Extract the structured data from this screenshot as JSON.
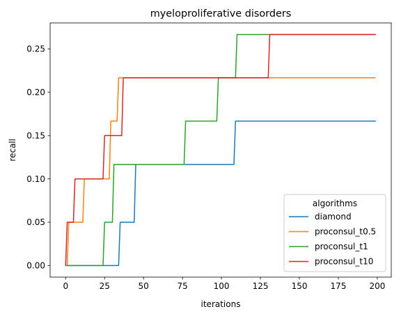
{
  "chart_data": {
    "type": "line",
    "title": "myeloproliferative disorders",
    "xlabel": "iterations",
    "ylabel": "recall",
    "xlim": [
      -9.95,
      208.95
    ],
    "ylim": [
      -0.01333,
      0.28
    ],
    "xticks": [
      0,
      25,
      50,
      75,
      100,
      125,
      150,
      175,
      200
    ],
    "xtick_labels": [
      "0",
      "25",
      "50",
      "75",
      "100",
      "125",
      "150",
      "175",
      "200"
    ],
    "yticks": [
      0.0,
      0.05,
      0.1,
      0.15,
      0.2,
      0.25
    ],
    "ytick_labels": [
      "0.00",
      "0.05",
      "0.10",
      "0.15",
      "0.20",
      "0.25"
    ],
    "grid": false,
    "legend": {
      "title": "algorithms",
      "placement": "lower-right"
    },
    "series": [
      {
        "name": "diamond",
        "color": "#1f77b4",
        "x": [
          0,
          34,
          35,
          40,
          44,
          45,
          108,
          109,
          199
        ],
        "y": [
          0,
          0,
          0.05,
          0.05,
          0.05,
          0.1167,
          0.1167,
          0.1667,
          0.1667
        ]
      },
      {
        "name": "proconsul_t0.5",
        "color": "#ff7f0e",
        "x": [
          0,
          1,
          2,
          3,
          11,
          12,
          28,
          29,
          33,
          34,
          36,
          199
        ],
        "y": [
          0,
          0,
          0.05,
          0.05,
          0.05,
          0.1,
          0.1,
          0.1667,
          0.1667,
          0.2167,
          0.2167,
          0.2167
        ]
      },
      {
        "name": "proconsul_t1",
        "color": "#2ca02c",
        "x": [
          0,
          24,
          25,
          30,
          31,
          32,
          76,
          77,
          97,
          98,
          109,
          110,
          199
        ],
        "y": [
          0,
          0,
          0.05,
          0.05,
          0.1167,
          0.1167,
          0.1167,
          0.1667,
          0.1667,
          0.2167,
          0.2167,
          0.2667,
          0.2667
        ]
      },
      {
        "name": "proconsul_t10",
        "color": "#d62728",
        "x": [
          0,
          1,
          5,
          6,
          24,
          25,
          32,
          33,
          36,
          37,
          130,
          131,
          199
        ],
        "y": [
          0,
          0.05,
          0.05,
          0.1,
          0.1,
          0.15,
          0.15,
          0.15,
          0.15,
          0.2167,
          0.2167,
          0.2667,
          0.2667
        ]
      }
    ]
  }
}
